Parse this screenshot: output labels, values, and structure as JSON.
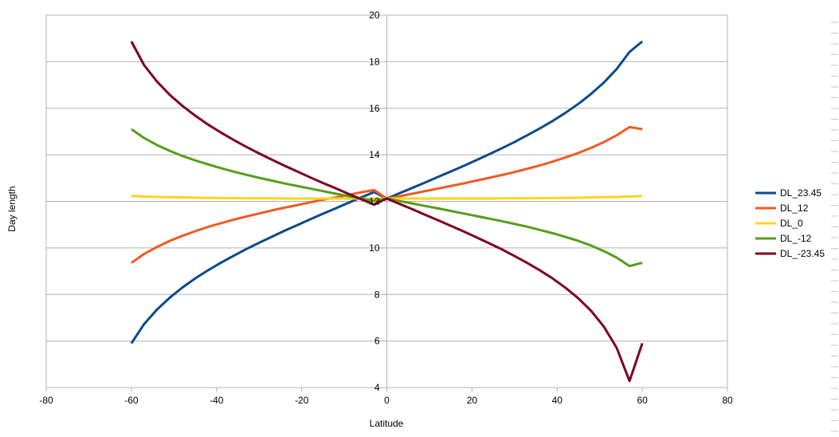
{
  "chart_data": {
    "type": "line",
    "title": "",
    "xlabel": "Latitude",
    "ylabel": "Day length",
    "xlim": [
      -80,
      80
    ],
    "ylim": [
      4,
      20
    ],
    "xticks": [
      -80,
      -60,
      -40,
      -20,
      0,
      20,
      40,
      60,
      80
    ],
    "yticks": [
      4,
      6,
      8,
      10,
      12,
      14,
      16,
      18,
      20
    ],
    "grid": "horizontal",
    "legend_position": "right",
    "x": [
      -60,
      -57,
      -54,
      -51,
      -48,
      -45,
      -42,
      -39,
      -36,
      -33,
      -30,
      -27,
      -24,
      -21,
      -18,
      -15,
      -12,
      -9,
      -6,
      -3,
      0,
      3,
      6,
      9,
      12,
      15,
      18,
      21,
      24,
      27,
      30,
      33,
      36,
      39,
      42,
      45,
      48,
      51,
      54,
      57,
      60
    ],
    "series": [
      {
        "name": "DL_23.45",
        "color": "#0b4a8b",
        "values": [
          5.9,
          6.73,
          7.35,
          7.86,
          8.3,
          8.69,
          9.04,
          9.36,
          9.66,
          9.95,
          10.22,
          10.48,
          10.74,
          10.98,
          11.23,
          11.47,
          11.7,
          11.94,
          12.17,
          12.4,
          12.12,
          12.35,
          12.58,
          12.81,
          13.05,
          13.28,
          13.52,
          13.77,
          14.02,
          14.28,
          14.55,
          14.84,
          15.14,
          15.46,
          15.81,
          16.19,
          16.62,
          17.11,
          17.69,
          18.42,
          18.87
        ]
      },
      {
        "name": "DL_12",
        "color": "#f15a22",
        "values": [
          9.36,
          9.74,
          10.04,
          10.3,
          10.52,
          10.72,
          10.9,
          11.06,
          11.21,
          11.35,
          11.48,
          11.61,
          11.73,
          11.84,
          11.96,
          12.07,
          12.17,
          12.28,
          12.39,
          12.49,
          12.12,
          12.22,
          12.33,
          12.44,
          12.55,
          12.66,
          12.77,
          12.89,
          13.01,
          13.13,
          13.26,
          13.4,
          13.55,
          13.71,
          13.89,
          14.08,
          14.3,
          14.55,
          14.84,
          15.19,
          15.1
        ]
      },
      {
        "name": "DL_0",
        "color": "#ffd320",
        "values": [
          12.23,
          12.21,
          12.19,
          12.18,
          12.17,
          12.16,
          12.15,
          12.14,
          12.14,
          12.13,
          12.13,
          12.13,
          12.12,
          12.12,
          12.12,
          12.12,
          12.12,
          12.12,
          12.12,
          12.12,
          12.12,
          12.12,
          12.12,
          12.12,
          12.12,
          12.12,
          12.12,
          12.12,
          12.12,
          12.13,
          12.13,
          12.13,
          12.14,
          12.14,
          12.15,
          12.16,
          12.17,
          12.18,
          12.19,
          12.21,
          12.23
        ]
      },
      {
        "name": "DL_-12",
        "color": "#579d1c",
        "values": [
          15.1,
          14.72,
          14.42,
          14.17,
          13.95,
          13.76,
          13.59,
          13.43,
          13.28,
          13.14,
          13.01,
          12.89,
          12.77,
          12.66,
          12.55,
          12.44,
          12.33,
          12.22,
          12.12,
          12.01,
          12.12,
          12.01,
          11.91,
          11.8,
          11.7,
          11.59,
          11.48,
          11.37,
          11.26,
          11.15,
          11.03,
          10.91,
          10.77,
          10.63,
          10.47,
          10.3,
          10.1,
          9.86,
          9.58,
          9.22,
          9.36
        ]
      },
      {
        "name": "DL_-23.45",
        "color": "#7e0021",
        "values": [
          18.87,
          17.85,
          17.15,
          16.58,
          16.1,
          15.68,
          15.3,
          14.96,
          14.64,
          14.34,
          14.06,
          13.79,
          13.53,
          13.28,
          13.03,
          12.79,
          12.56,
          12.32,
          12.09,
          11.86,
          12.12,
          11.89,
          11.66,
          11.42,
          11.19,
          10.95,
          10.71,
          10.46,
          10.2,
          9.94,
          9.65,
          9.35,
          9.03,
          8.68,
          8.28,
          7.83,
          7.29,
          6.61,
          5.7,
          4.28,
          5.9
        ]
      }
    ]
  }
}
